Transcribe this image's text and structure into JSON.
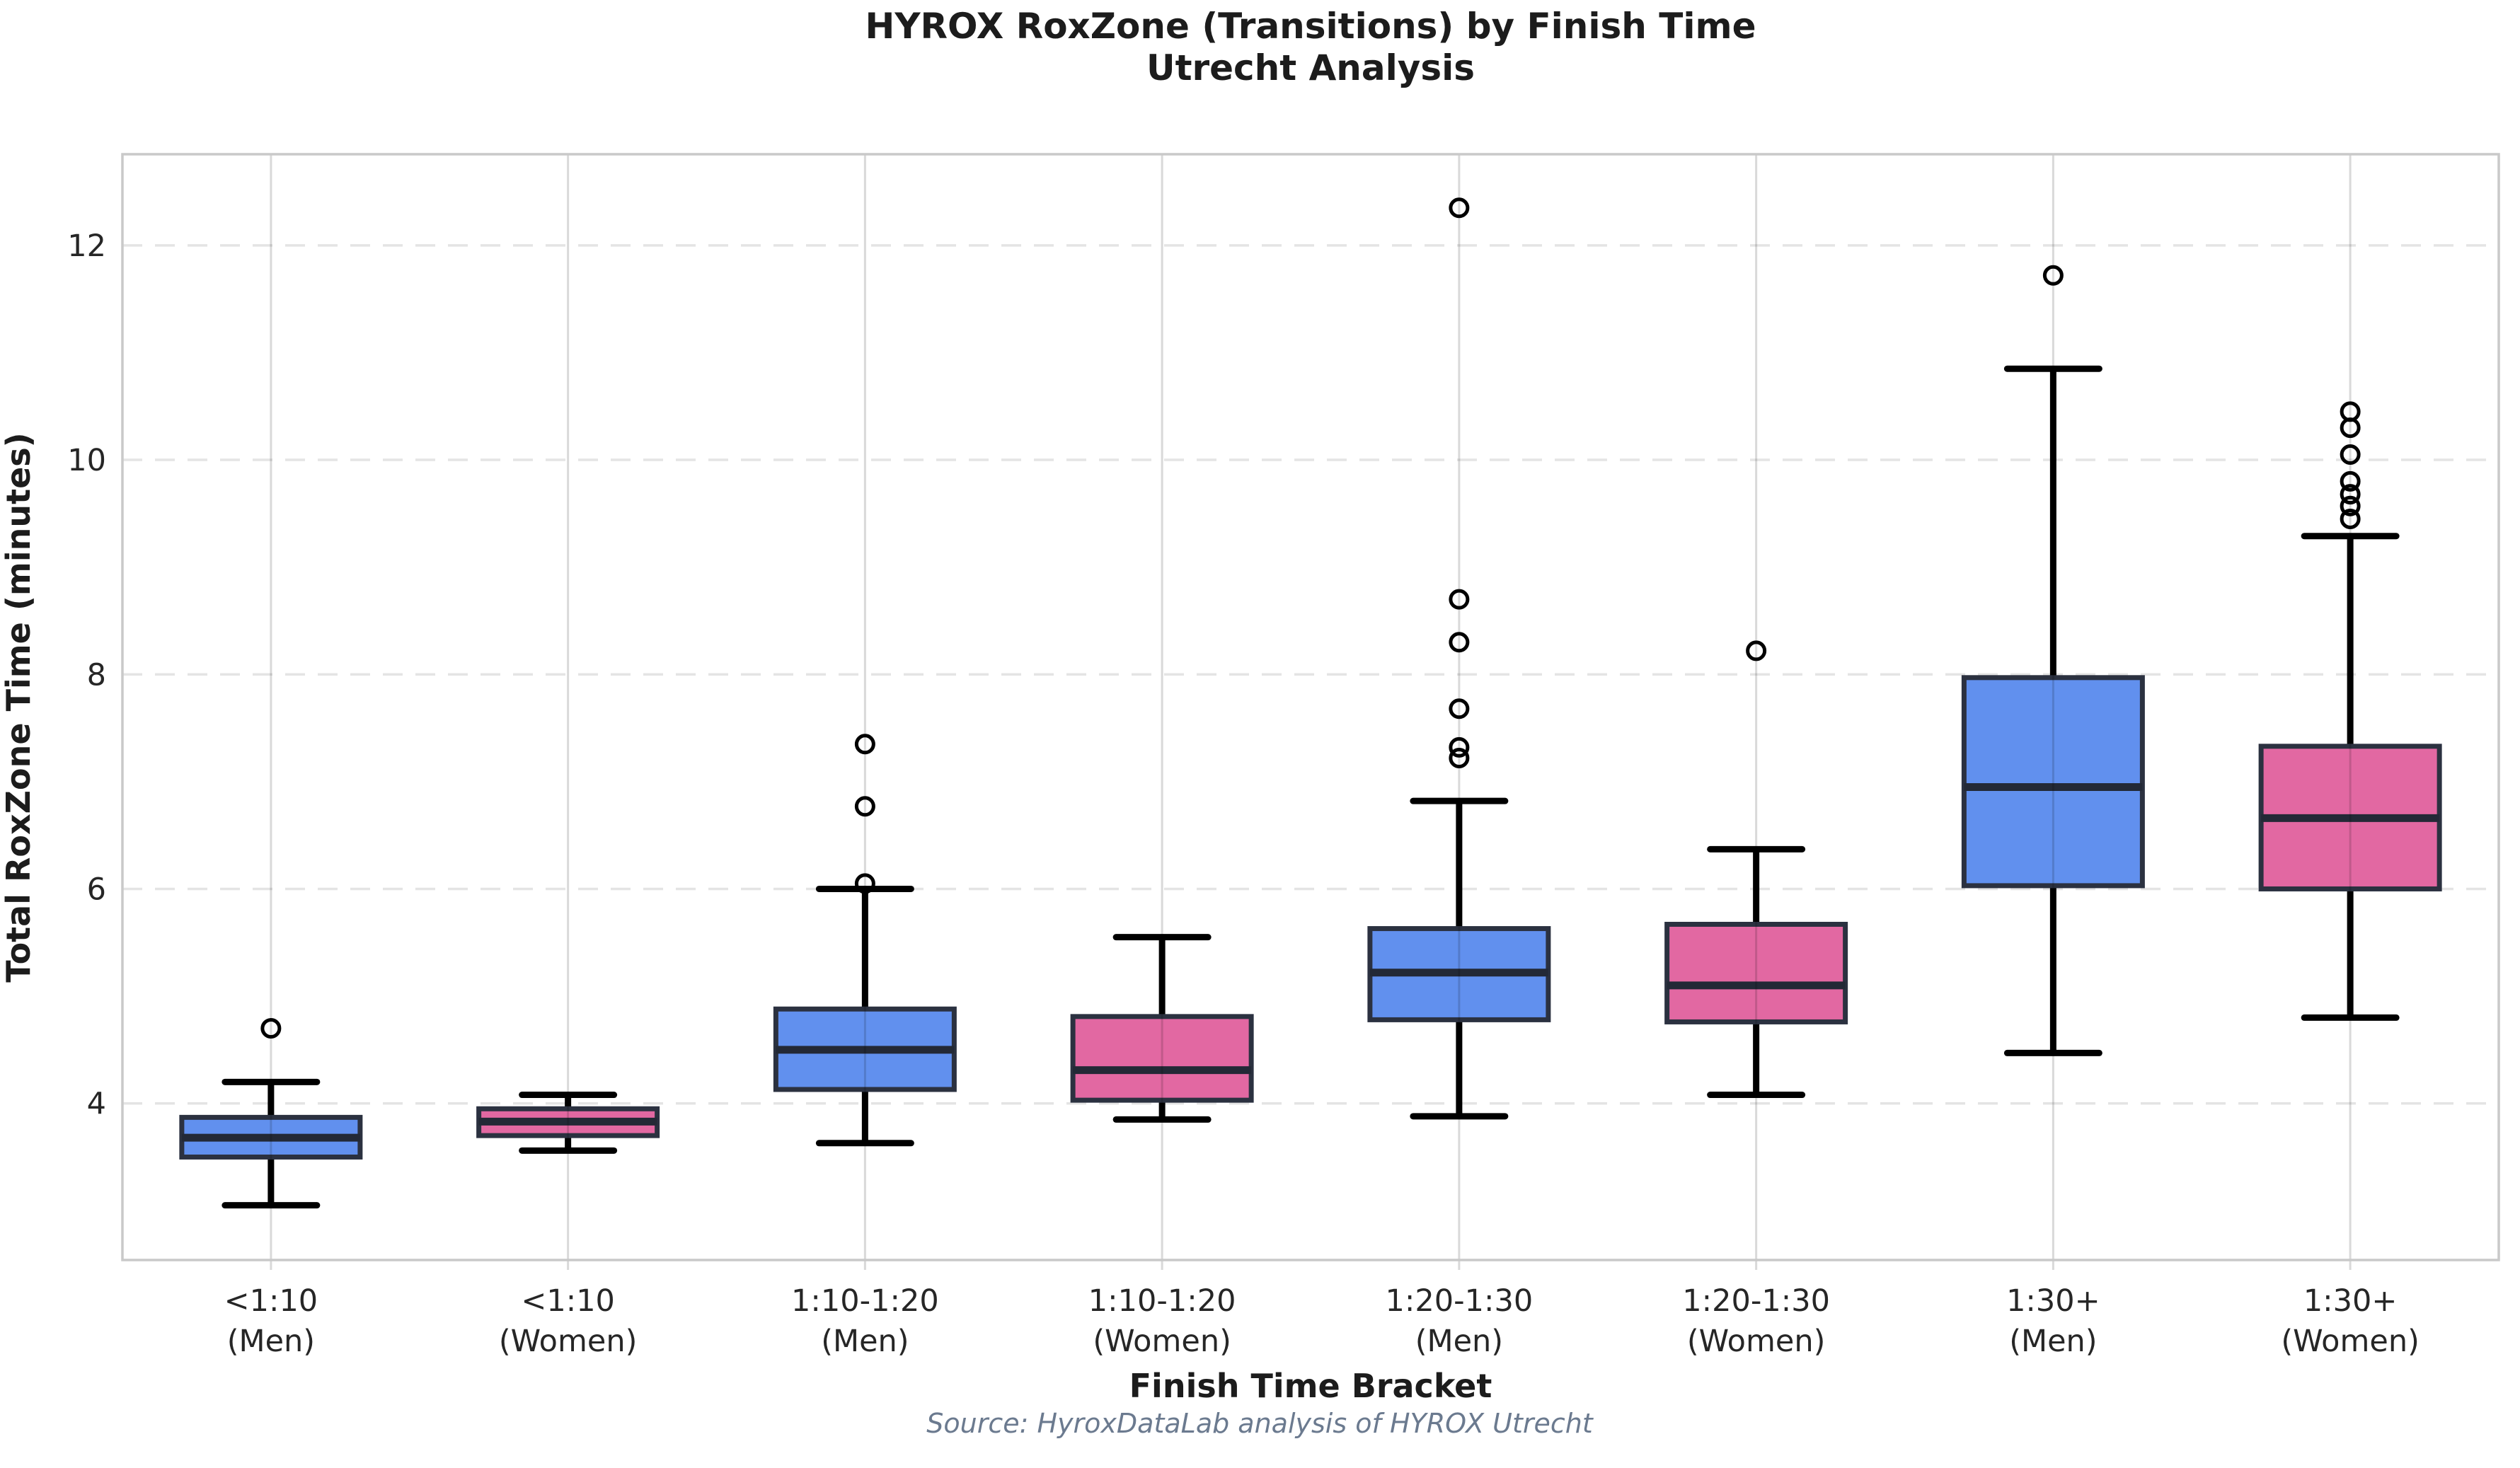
{
  "title": "HYROX RoxZone (Transitions) by Finish Time",
  "subtitle": "Utrecht Analysis",
  "source_note": "Source: HyroxDataLab analysis of HYROX Utrecht",
  "colors": {
    "men_box_fill": "#6190ee",
    "women_box_fill": "#e268a2",
    "box_edge": "#2b3140",
    "median_line": "#232936",
    "whisker": "#000000",
    "h_grid": "#e4e4e4",
    "v_grid": "#d9d9d9",
    "spine": "#c9c9c9",
    "title_text": "#1c1c1c",
    "source_text": "#6b7a8f"
  },
  "chart_data": {
    "type": "boxplot",
    "title": "HYROX RoxZone (Transitions) by Finish Time",
    "subtitle": "Utrecht Analysis",
    "xlabel": "Finish Time Bracket",
    "ylabel": "Total RoxZone Time (minutes)",
    "yticks": [
      4,
      6,
      8,
      10,
      12
    ],
    "ylim": [
      2.54,
      12.85
    ],
    "grid": {
      "horizontal": "dashed",
      "vertical": "solid",
      "legend": "none"
    },
    "categories": [
      {
        "bracket": "<1:10",
        "gender": "(Men)"
      },
      {
        "bracket": "<1:10",
        "gender": "(Women)"
      },
      {
        "bracket": "1:10-1:20",
        "gender": "(Men)"
      },
      {
        "bracket": "1:10-1:20",
        "gender": "(Women)"
      },
      {
        "bracket": "1:20-1:30",
        "gender": "(Men)"
      },
      {
        "bracket": "1:20-1:30",
        "gender": "(Women)"
      },
      {
        "bracket": "1:30+",
        "gender": "(Men)"
      },
      {
        "bracket": "1:30+",
        "gender": "(Women)"
      }
    ],
    "boxes": [
      {
        "label": "<1:10 (Men)",
        "group": "men",
        "whisker_low": 3.05,
        "q1": 3.5,
        "median": 3.68,
        "q3": 3.87,
        "whisker_high": 4.2,
        "outliers": [
          4.7
        ]
      },
      {
        "label": "<1:10 (Women)",
        "group": "women",
        "whisker_low": 3.56,
        "q1": 3.7,
        "median": 3.83,
        "q3": 3.95,
        "whisker_high": 4.08,
        "outliers": []
      },
      {
        "label": "1:10-1:20 (Men)",
        "group": "men",
        "whisker_low": 3.63,
        "q1": 4.13,
        "median": 4.5,
        "q3": 4.88,
        "whisker_high": 6.0,
        "outliers": [
          6.05,
          6.77,
          7.35
        ]
      },
      {
        "label": "1:10-1:20 (Women)",
        "group": "women",
        "whisker_low": 3.85,
        "q1": 4.03,
        "median": 4.31,
        "q3": 4.81,
        "whisker_high": 5.55,
        "outliers": []
      },
      {
        "label": "1:20-1:30 (Men)",
        "group": "men",
        "whisker_low": 3.88,
        "q1": 4.78,
        "median": 5.22,
        "q3": 5.63,
        "whisker_high": 6.82,
        "outliers": [
          7.22,
          7.32,
          7.68,
          8.3,
          8.7,
          12.35
        ]
      },
      {
        "label": "1:20-1:30 (Women)",
        "group": "women",
        "whisker_low": 4.08,
        "q1": 4.76,
        "median": 5.1,
        "q3": 5.67,
        "whisker_high": 6.37,
        "outliers": [
          8.22
        ]
      },
      {
        "label": "1:30+ (Men)",
        "group": "men",
        "whisker_low": 4.47,
        "q1": 6.03,
        "median": 6.95,
        "q3": 7.97,
        "whisker_high": 10.85,
        "outliers": [
          11.72
        ]
      },
      {
        "label": "1:30+ (Women)",
        "group": "women",
        "whisker_low": 4.8,
        "q1": 6.0,
        "median": 6.66,
        "q3": 7.33,
        "whisker_high": 9.29,
        "outliers": [
          9.45,
          9.57,
          9.68,
          9.8,
          10.05,
          10.3,
          10.45
        ]
      }
    ]
  }
}
